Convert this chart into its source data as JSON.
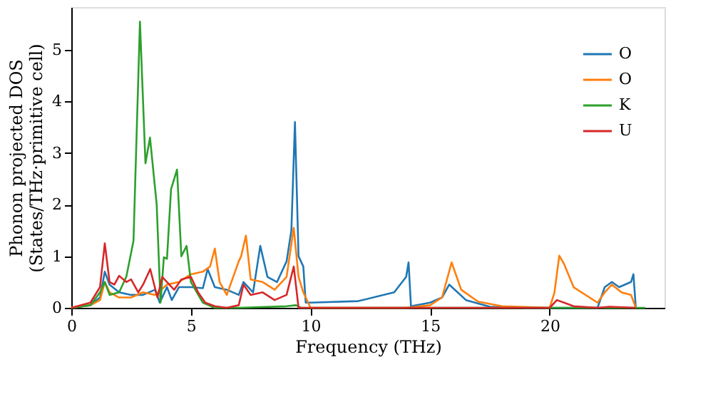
{
  "chart_data": {
    "type": "line",
    "xlabel": "Frequency (THz)",
    "ylabel": "Phonon projected DOS\n(States/THz·primitive cell)",
    "xlim": [
      0,
      24.8
    ],
    "ylim": [
      0,
      5.83
    ],
    "xticks": [
      0,
      5,
      10,
      15,
      20
    ],
    "yticks": [
      0,
      1,
      2,
      3,
      4,
      5
    ],
    "grid": false,
    "legend": "top right",
    "series": [
      {
        "name": "O",
        "color": "#1f77b4",
        "x": [
          0,
          0.8,
          1.2,
          1.4,
          1.6,
          2.0,
          2.5,
          3.0,
          3.5,
          3.7,
          4.0,
          4.2,
          4.5,
          5.0,
          5.5,
          5.7,
          6.0,
          6.5,
          7.0,
          7.2,
          7.6,
          7.9,
          8.2,
          8.6,
          9.0,
          9.2,
          9.35,
          9.5,
          9.7,
          9.8,
          10.0,
          12.0,
          13.5,
          14.0,
          14.1,
          14.2,
          15.0,
          15.5,
          15.8,
          16.5,
          17.5,
          19.0,
          22.0,
          22.3,
          22.6,
          22.9,
          23.4,
          23.5,
          23.6
        ],
        "values": [
          0,
          0.05,
          0.2,
          0.7,
          0.45,
          0.3,
          0.25,
          0.25,
          0.35,
          0.1,
          0.4,
          0.15,
          0.4,
          0.4,
          0.38,
          0.75,
          0.4,
          0.35,
          0.25,
          0.5,
          0.3,
          1.2,
          0.6,
          0.5,
          0.9,
          1.5,
          3.6,
          1.0,
          0.8,
          0.1,
          0.1,
          0.13,
          0.3,
          0.6,
          0.88,
          0.03,
          0.1,
          0.2,
          0.45,
          0.15,
          0.02,
          0,
          0,
          0.4,
          0.5,
          0.4,
          0.5,
          0.65,
          0
        ]
      },
      {
        "name": "O",
        "color": "#ff7f0e",
        "x": [
          0,
          0.8,
          1.2,
          1.4,
          1.6,
          2.0,
          2.5,
          3.0,
          3.5,
          4.0,
          4.5,
          5.0,
          5.5,
          5.8,
          6.0,
          6.2,
          6.5,
          7.0,
          7.1,
          7.3,
          7.5,
          8.0,
          8.5,
          9.0,
          9.3,
          9.5,
          9.7,
          10.0,
          14.0,
          15.0,
          15.5,
          15.9,
          16.3,
          17.0,
          18.0,
          20.0,
          20.2,
          20.4,
          20.6,
          21.0,
          22.0,
          22.3,
          22.6,
          23.0,
          23.4,
          23.6
        ],
        "values": [
          0,
          0.05,
          0.15,
          0.5,
          0.3,
          0.2,
          0.2,
          0.3,
          0.25,
          0.45,
          0.5,
          0.65,
          0.7,
          0.8,
          1.15,
          0.5,
          0.25,
          0.9,
          1.0,
          1.4,
          0.55,
          0.5,
          0.35,
          0.6,
          1.55,
          0.6,
          0.3,
          0,
          0,
          0.05,
          0.2,
          0.88,
          0.35,
          0.12,
          0.03,
          0,
          0.3,
          1.01,
          0.85,
          0.4,
          0.1,
          0.3,
          0.45,
          0.3,
          0.25,
          0
        ]
      },
      {
        "name": "K",
        "color": "#2ca02c",
        "x": [
          0,
          0.8,
          1.2,
          1.4,
          1.6,
          2.0,
          2.3,
          2.6,
          2.87,
          3.1,
          3.29,
          3.57,
          3.73,
          3.87,
          4.0,
          4.17,
          4.42,
          4.6,
          4.82,
          5.0,
          5.5,
          6.0,
          7.0,
          9.0,
          9.4,
          9.6,
          24.0
        ],
        "values": [
          0,
          0.05,
          0.3,
          0.5,
          0.25,
          0.3,
          0.6,
          1.3,
          5.55,
          2.8,
          3.3,
          2.0,
          0.1,
          0.98,
          0.95,
          2.3,
          2.68,
          1.0,
          1.2,
          0.5,
          0.1,
          0,
          0,
          0.03,
          0.05,
          0,
          0
        ]
      },
      {
        "name": "U",
        "color": "#d62728",
        "x": [
          0,
          0.8,
          1.2,
          1.4,
          1.6,
          1.8,
          2.0,
          2.3,
          2.5,
          2.8,
          3.0,
          3.3,
          3.6,
          3.8,
          4.0,
          4.3,
          4.6,
          5.0,
          5.3,
          5.6,
          6.0,
          6.5,
          7.0,
          7.2,
          7.5,
          8.0,
          8.5,
          9.0,
          9.3,
          9.5,
          10.0,
          20.0,
          20.3,
          20.6,
          21.0,
          22.0,
          22.5,
          23.6
        ],
        "values": [
          0,
          0.1,
          0.4,
          1.25,
          0.5,
          0.45,
          0.62,
          0.5,
          0.55,
          0.3,
          0.45,
          0.75,
          0.2,
          0.6,
          0.5,
          0.35,
          0.55,
          0.6,
          0.3,
          0.1,
          0.03,
          0,
          0.05,
          0.45,
          0.25,
          0.3,
          0.15,
          0.25,
          0.8,
          0,
          0,
          0,
          0.15,
          0.1,
          0.03,
          0,
          0.02,
          0
        ]
      }
    ]
  }
}
